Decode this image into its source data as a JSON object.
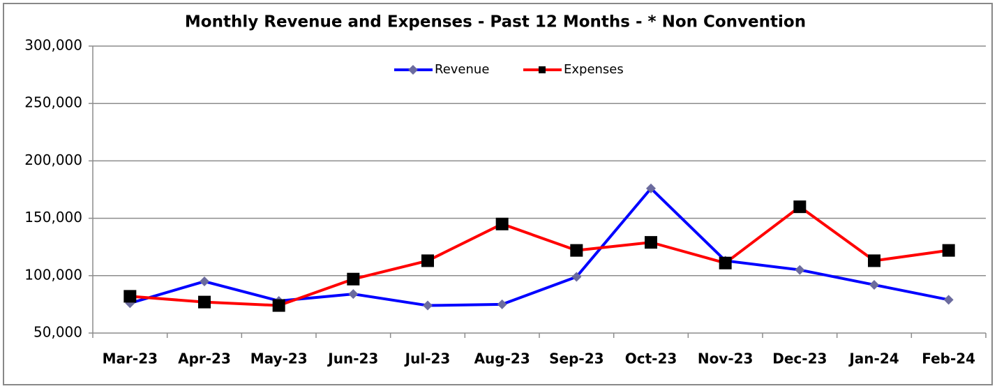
{
  "chart_data": {
    "type": "line",
    "title": "Monthly Revenue and Expenses - Past 12 Months - * Non Convention",
    "categories": [
      "Mar-23",
      "Apr-23",
      "May-23",
      "Jun-23",
      "Jul-23",
      "Aug-23",
      "Sep-23",
      "Oct-23",
      "Nov-23",
      "Dec-23",
      "Jan-24",
      "Feb-24"
    ],
    "series": [
      {
        "name": "Revenue",
        "color": "#0000ff",
        "marker": "diamond",
        "marker_color": "#6b6b9e",
        "values": [
          76000,
          95000,
          78000,
          84000,
          74000,
          75000,
          99000,
          176000,
          113000,
          105000,
          92000,
          79000
        ]
      },
      {
        "name": "Expenses",
        "color": "#ff0000",
        "marker": "square",
        "marker_color": "#000000",
        "values": [
          82000,
          77000,
          74000,
          97000,
          113000,
          145000,
          122000,
          129000,
          111000,
          160000,
          113000,
          122000
        ]
      }
    ],
    "ylim": [
      50000,
      300000
    ],
    "yticks": [
      {
        "value": 50000,
        "label": "50,000"
      },
      {
        "value": 100000,
        "label": "100,000"
      },
      {
        "value": 150000,
        "label": "150,000"
      },
      {
        "value": 200000,
        "label": "200,000"
      },
      {
        "value": 250000,
        "label": "250,000"
      },
      {
        "value": 300000,
        "label": "300,000"
      }
    ],
    "grid": true,
    "legend": "top"
  }
}
